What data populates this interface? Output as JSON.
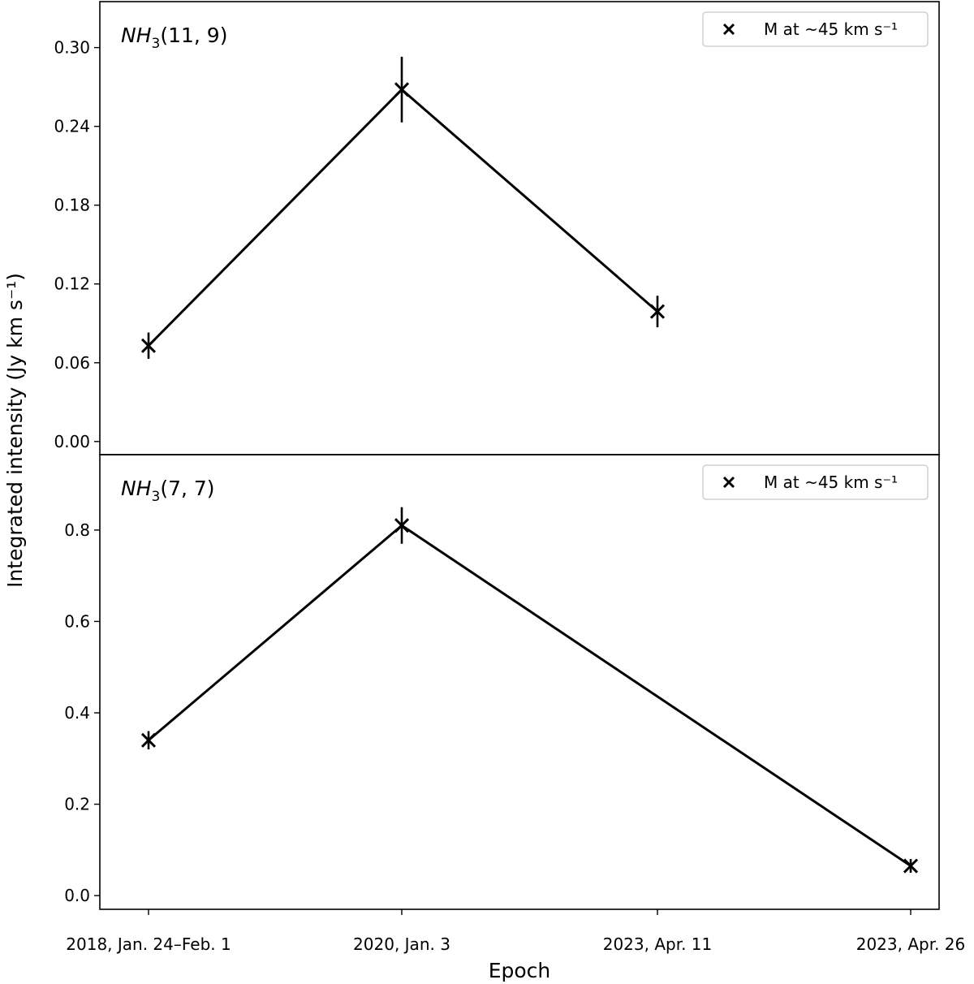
{
  "chart_data": {
    "type": "line",
    "xlabel": "Epoch",
    "ylabel": "Integrated intensity (Jy km s⁻¹)",
    "categories": [
      "2018, Jan. 24–Feb. 1",
      "2020, Jan. 3",
      "2023, Apr. 11",
      "2023, Apr. 26"
    ],
    "panels": [
      {
        "title_main": "NH",
        "title_sub": "3",
        "title_rest": "(11, 9)",
        "ylim": [
          -0.01,
          0.335
        ],
        "yticks": [
          0.0,
          0.06,
          0.12,
          0.18,
          0.24,
          0.3
        ],
        "ytick_labels": [
          "0.00",
          "0.06",
          "0.12",
          "0.18",
          "0.24",
          "0.30"
        ],
        "legend": "M at ~45 km s⁻¹",
        "legend_loc": "top-right",
        "series": [
          {
            "name": "M at ~45 km s⁻¹",
            "x_index": [
              0,
              1,
              2
            ],
            "values": [
              0.073,
              0.268,
              0.099
            ],
            "errors": [
              0.01,
              0.025,
              0.012
            ]
          }
        ]
      },
      {
        "title_main": "NH",
        "title_sub": "3",
        "title_rest": "(7, 7)",
        "ylim": [
          -0.03,
          0.965
        ],
        "yticks": [
          0.0,
          0.2,
          0.4,
          0.6,
          0.8
        ],
        "ytick_labels": [
          "0.0",
          "0.2",
          "0.4",
          "0.6",
          "0.8"
        ],
        "legend": "M at ~45 km s⁻¹",
        "legend_loc": "top-right",
        "series": [
          {
            "name": "M at ~45 km s⁻¹",
            "x_index": [
              0,
              1,
              3
            ],
            "values": [
              0.34,
              0.81,
              0.065
            ],
            "errors": [
              0.02,
              0.04,
              0.015
            ]
          }
        ]
      }
    ]
  }
}
